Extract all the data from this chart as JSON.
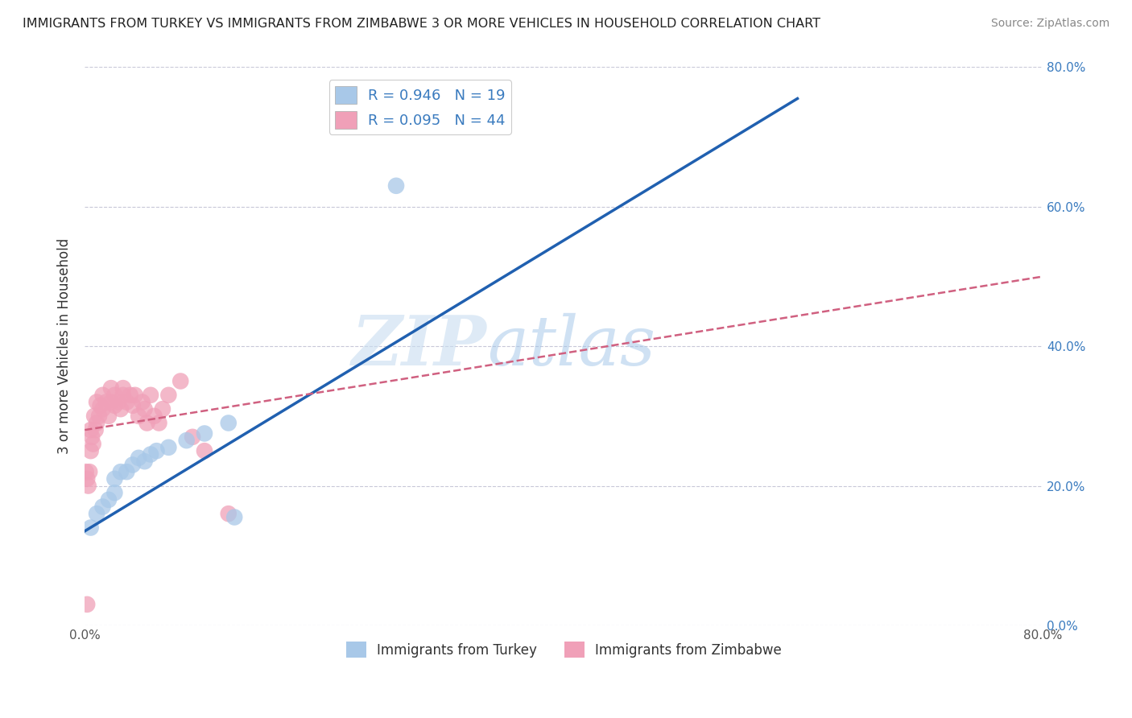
{
  "title": "IMMIGRANTS FROM TURKEY VS IMMIGRANTS FROM ZIMBABWE 3 OR MORE VEHICLES IN HOUSEHOLD CORRELATION CHART",
  "source": "Source: ZipAtlas.com",
  "ylabel": "3 or more Vehicles in Household",
  "xlim": [
    0.0,
    0.8
  ],
  "ylim": [
    0.0,
    0.8
  ],
  "xticks": [
    0.0,
    0.1,
    0.2,
    0.3,
    0.4,
    0.5,
    0.6,
    0.7,
    0.8
  ],
  "xtick_labels": [
    "0.0%",
    "",
    "",
    "",
    "",
    "",
    "",
    "",
    "80.0%"
  ],
  "yticks_show": [
    0.0,
    0.2,
    0.4,
    0.6,
    0.8
  ],
  "ytick_labels_right": [
    "0.0%",
    "20.0%",
    "40.0%",
    "60.0%",
    "80.0%"
  ],
  "turkey_R": 0.946,
  "turkey_N": 19,
  "zimbabwe_R": 0.095,
  "zimbabwe_N": 44,
  "turkey_color": "#a8c8e8",
  "turkey_line_color": "#2060b0",
  "zimbabwe_color": "#f0a0b8",
  "zimbabwe_line_color": "#d06080",
  "legend_label_turkey": "Immigrants from Turkey",
  "legend_label_zimbabwe": "Immigrants from Zimbabwe",
  "watermark_zip": "ZIP",
  "watermark_atlas": "atlas",
  "background_color": "#ffffff",
  "grid_color": "#c8c8d8",
  "turkey_x": [
    0.005,
    0.01,
    0.015,
    0.02,
    0.025,
    0.025,
    0.03,
    0.035,
    0.04,
    0.045,
    0.05,
    0.055,
    0.06,
    0.07,
    0.085,
    0.1,
    0.12,
    0.125,
    0.26
  ],
  "turkey_y": [
    0.14,
    0.16,
    0.17,
    0.18,
    0.19,
    0.21,
    0.22,
    0.22,
    0.23,
    0.24,
    0.235,
    0.245,
    0.25,
    0.255,
    0.265,
    0.275,
    0.29,
    0.155,
    0.63
  ],
  "zimbabwe_x": [
    0.001,
    0.002,
    0.003,
    0.004,
    0.005,
    0.005,
    0.006,
    0.007,
    0.008,
    0.009,
    0.01,
    0.01,
    0.012,
    0.013,
    0.015,
    0.015,
    0.018,
    0.02,
    0.022,
    0.022,
    0.025,
    0.025,
    0.028,
    0.03,
    0.032,
    0.032,
    0.035,
    0.038,
    0.04,
    0.042,
    0.045,
    0.048,
    0.05,
    0.052,
    0.055,
    0.058,
    0.062,
    0.065,
    0.07,
    0.08,
    0.09,
    0.1,
    0.12,
    0.002
  ],
  "zimbabwe_y": [
    0.22,
    0.21,
    0.2,
    0.22,
    0.25,
    0.28,
    0.27,
    0.26,
    0.3,
    0.28,
    0.29,
    0.32,
    0.3,
    0.315,
    0.31,
    0.33,
    0.32,
    0.3,
    0.32,
    0.34,
    0.315,
    0.33,
    0.32,
    0.31,
    0.33,
    0.34,
    0.32,
    0.33,
    0.315,
    0.33,
    0.3,
    0.32,
    0.31,
    0.29,
    0.33,
    0.3,
    0.29,
    0.31,
    0.33,
    0.35,
    0.27,
    0.25,
    0.16,
    0.03
  ],
  "turkey_line_x0": 0.0,
  "turkey_line_x1": 0.595,
  "turkey_line_y0": 0.135,
  "turkey_line_y1": 0.755,
  "zimbabwe_line_x0": 0.0,
  "zimbabwe_line_x1": 0.8,
  "zimbabwe_line_y0": 0.28,
  "zimbabwe_line_y1": 0.5
}
